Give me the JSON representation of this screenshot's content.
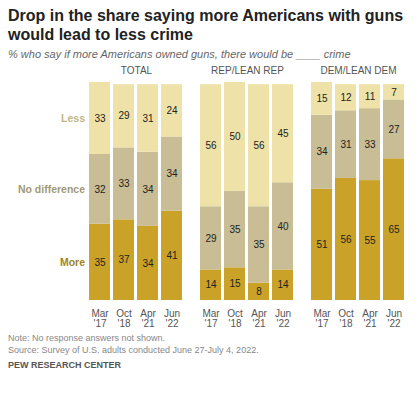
{
  "chart_data": {
    "type": "bar",
    "title": "Drop in the share saying more Americans with guns would lead to less crime",
    "subtitle": "% who say if more Americans owned guns, there would be ____ crime",
    "note": "Note: No response answers not shown.",
    "source": "Source: Survey of U.S. adults conducted June 27-July 4, 2022.",
    "credit": "PEW RESEARCH CENTER",
    "stacked": true,
    "data_labels": true,
    "tick_labels": "x",
    "ylim": [
      0,
      100
    ],
    "categories": [
      "Mar '17",
      "Oct '18",
      "Apr '21",
      "Jun '22"
    ],
    "panels": [
      {
        "title": "TOTAL",
        "series": [
          {
            "name": "More",
            "color": "#c9a227",
            "values": [
              35,
              37,
              34,
              41
            ]
          },
          {
            "name": "No difference",
            "color": "#c8bd94",
            "values": [
              32,
              33,
              34,
              34
            ]
          },
          {
            "name": "Less",
            "color": "#efe2a8",
            "values": [
              33,
              29,
              31,
              24
            ]
          }
        ]
      },
      {
        "title": "REP/LEAN REP",
        "series": [
          {
            "name": "More",
            "color": "#c9a227",
            "values": [
              14,
              15,
              8,
              14
            ]
          },
          {
            "name": "No difference",
            "color": "#c8bd94",
            "values": [
              29,
              35,
              35,
              40
            ]
          },
          {
            "name": "Less",
            "color": "#efe2a8",
            "values": [
              56,
              50,
              56,
              45
            ]
          }
        ]
      },
      {
        "title": "DEM/LEAN DEM",
        "series": [
          {
            "name": "More",
            "color": "#c9a227",
            "values": [
              51,
              56,
              55,
              65
            ]
          },
          {
            "name": "No difference",
            "color": "#c8bd94",
            "values": [
              34,
              31,
              33,
              27
            ]
          },
          {
            "name": "Less",
            "color": "#efe2a8",
            "values": [
              15,
              12,
              11,
              7
            ]
          }
        ]
      }
    ]
  }
}
